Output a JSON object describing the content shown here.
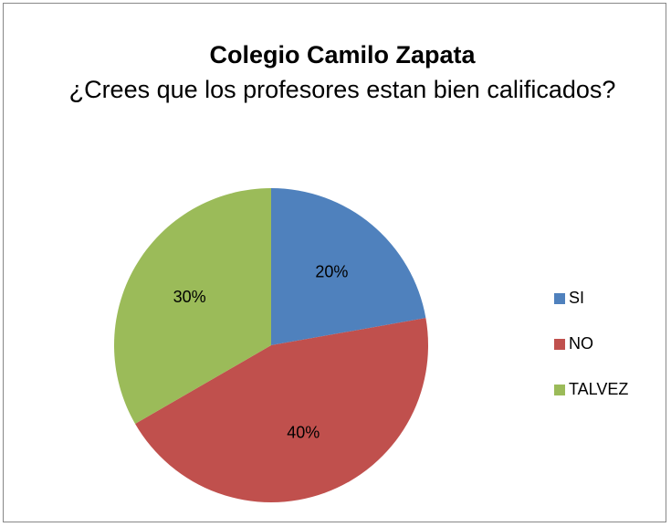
{
  "chart_data": {
    "type": "pie",
    "title": "Colegio Camilo Zapata",
    "subtitle": "¿Crees que los profesores estan bien calificados?",
    "categories": [
      "SI",
      "NO",
      "TALVEZ"
    ],
    "values": [
      20,
      40,
      30
    ],
    "value_labels": [
      "20%",
      "40%",
      "30%"
    ],
    "colors": [
      "#4f81bd",
      "#c0504d",
      "#9bbb59"
    ],
    "legend": "right"
  }
}
